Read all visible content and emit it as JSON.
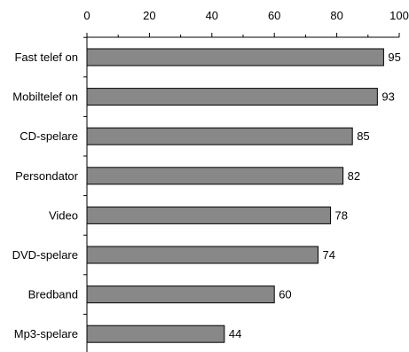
{
  "chart_data": {
    "type": "bar",
    "orientation": "horizontal",
    "categories": [
      "Fast telef on",
      "Mobiltelef on",
      "CD-spelare",
      "Persondator",
      "Video",
      "DVD-spelare",
      "Bredband",
      "Mp3-spelare"
    ],
    "values": [
      95,
      93,
      85,
      82,
      78,
      74,
      60,
      44
    ],
    "xlim": [
      0,
      100
    ],
    "x_ticks": [
      0,
      20,
      40,
      60,
      80,
      100
    ],
    "x_axis_position": "top",
    "grid": false,
    "legend": "none",
    "bar_color": "#888888",
    "bar_edge_color": "#000000"
  }
}
